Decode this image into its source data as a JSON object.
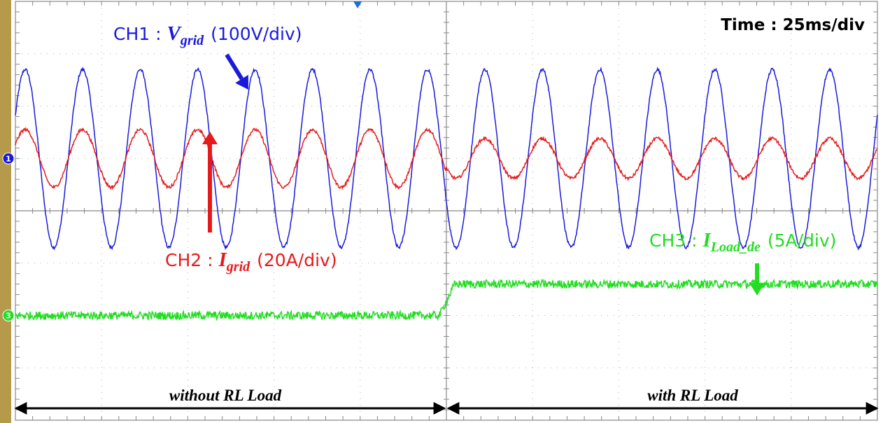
{
  "chart_data": {
    "type": "line",
    "time_scale": "Time : 25ms/div",
    "divisions": {
      "x": 10,
      "y": 8
    },
    "section_labels": [
      {
        "id": "without",
        "label": "without RL Load"
      },
      {
        "id": "with",
        "label": "with RL Load"
      }
    ],
    "event_division": 5,
    "series": [
      {
        "id": "ch1",
        "prefix": "CH1 : ",
        "symbol": "V",
        "subscript": "grid",
        "scale": "(100V/div)",
        "color": "#1a1adc",
        "marker": "1",
        "frequency_hz": 60,
        "amplitude_div": 1.7,
        "offset_div": 1.0,
        "amplitude_after_div": 1.7
      },
      {
        "id": "ch2",
        "prefix": "CH2 : ",
        "symbol": "I",
        "subscript": "grid",
        "scale": "(20A/div)",
        "color": "#e61a1a",
        "frequency_hz": 60,
        "amplitude_div": 0.55,
        "offset_div": 1.0,
        "amplitude_after_div": 0.38
      },
      {
        "id": "ch3",
        "prefix": "CH3 : ",
        "symbol": "I",
        "subscript": "Load_de",
        "scale": "(5A/div)",
        "color": "#22dd22",
        "marker": "3",
        "level_before_div": -2.0,
        "level_after_div": -1.4
      }
    ]
  }
}
